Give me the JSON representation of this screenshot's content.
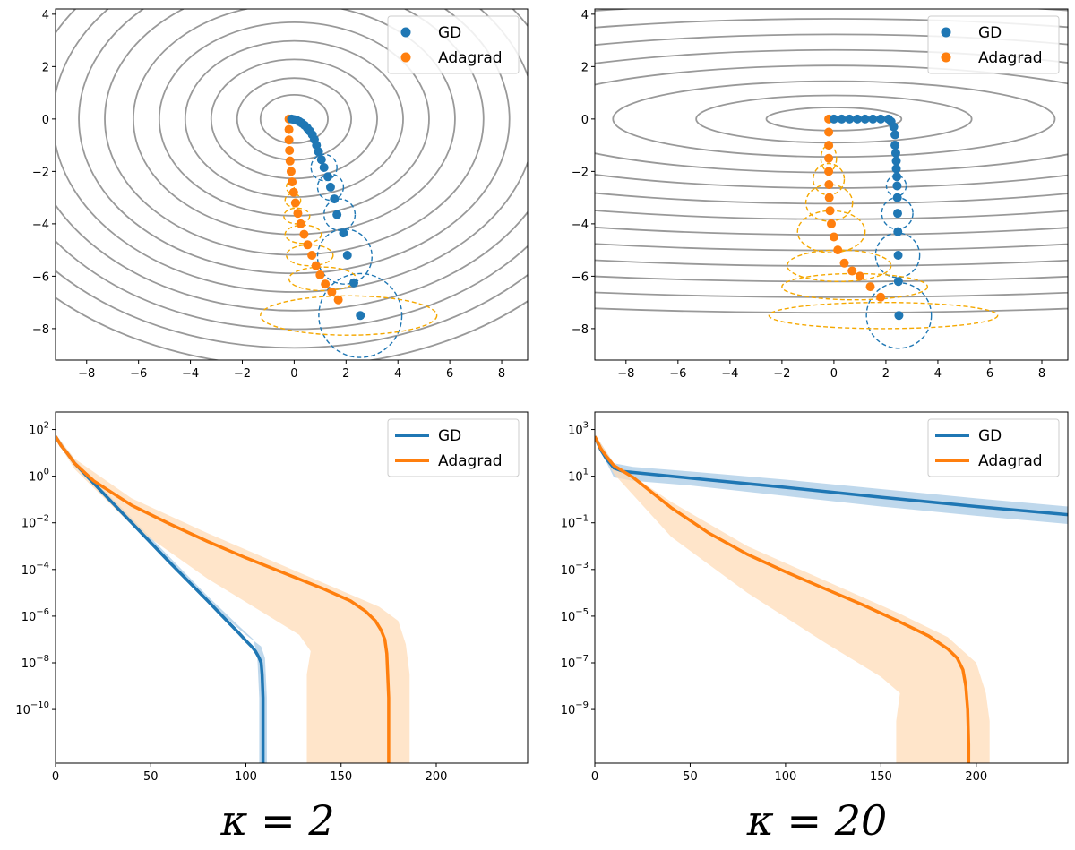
{
  "figure": {
    "captions": [
      "κ = 2",
      "κ = 20"
    ]
  },
  "colors": {
    "gd": "#1f77b4",
    "adagrad": "#ff7f0e",
    "adagrad_ellipse": "#f5a800",
    "contour": "#999999",
    "gd_band": "#aacbe5",
    "adagrad_band": "#ffdcb8"
  },
  "chart_data": [
    {
      "type": "scatter",
      "title": "",
      "xlabel": "",
      "ylabel": "",
      "xlim": [
        -9.2,
        9.0
      ],
      "ylim": [
        -9.2,
        4.2
      ],
      "xticks": [
        -8,
        -6,
        -4,
        -2,
        0,
        2,
        4,
        6,
        8
      ],
      "yticks": [
        -8,
        -6,
        -4,
        -2,
        0,
        2,
        4
      ],
      "kappa": 2,
      "legend": {
        "position": "top-right",
        "entries": [
          "GD",
          "Adagrad"
        ]
      },
      "contours": {
        "center": [
          0,
          0
        ],
        "radii_x": [
          1.3,
          2.2,
          3.2,
          4.2,
          5.2,
          6.2,
          7.3,
          8.3,
          9.3,
          10.3,
          11.3,
          12.3,
          13.3
        ],
        "aspect_y": 0.71
      },
      "series": [
        {
          "name": "GD",
          "points": [
            [
              -0.1,
              0
            ],
            [
              0,
              -0.02
            ],
            [
              0.1,
              -0.05
            ],
            [
              0.2,
              -0.1
            ],
            [
              0.3,
              -0.16
            ],
            [
              0.4,
              -0.24
            ],
            [
              0.5,
              -0.34
            ],
            [
              0.6,
              -0.46
            ],
            [
              0.7,
              -0.6
            ],
            [
              0.78,
              -0.78
            ],
            [
              0.86,
              -1.0
            ],
            [
              0.94,
              -1.25
            ],
            [
              1.05,
              -1.55
            ],
            [
              1.15,
              -1.85
            ],
            [
              1.3,
              -2.2
            ],
            [
              1.4,
              -2.6
            ],
            [
              1.55,
              -3.05
            ],
            [
              1.65,
              -3.65
            ],
            [
              1.9,
              -4.35
            ],
            [
              2.05,
              -5.2
            ],
            [
              2.3,
              -6.25
            ],
            [
              2.55,
              -7.5
            ]
          ],
          "ellipses": [
            [
              1.15,
              -1.85,
              0.5,
              0.5
            ],
            [
              1.4,
              -2.6,
              0.5,
              0.5
            ],
            [
              1.75,
              -3.65,
              0.6,
              0.6
            ],
            [
              1.95,
              -5.25,
              1.05,
              1.05
            ],
            [
              2.55,
              -7.5,
              1.6,
              1.6
            ]
          ]
        },
        {
          "name": "Adagrad",
          "points": [
            [
              -0.2,
              0
            ],
            [
              -0.2,
              -0.4
            ],
            [
              -0.2,
              -0.8
            ],
            [
              -0.18,
              -1.2
            ],
            [
              -0.16,
              -1.6
            ],
            [
              -0.12,
              -2.0
            ],
            [
              -0.08,
              -2.4
            ],
            [
              -0.02,
              -2.8
            ],
            [
              0.05,
              -3.2
            ],
            [
              0.14,
              -3.6
            ],
            [
              0.25,
              -4.0
            ],
            [
              0.38,
              -4.4
            ],
            [
              0.52,
              -4.8
            ],
            [
              0.68,
              -5.2
            ],
            [
              0.84,
              -5.6
            ],
            [
              1.0,
              -5.95
            ],
            [
              1.2,
              -6.3
            ],
            [
              1.45,
              -6.6
            ],
            [
              1.7,
              -6.9
            ]
          ],
          "ellipses": [
            [
              -0.15,
              -2.6,
              0.15,
              0.2
            ],
            [
              -0.05,
              -3.1,
              0.3,
              0.25
            ],
            [
              0.1,
              -3.7,
              0.5,
              0.3
            ],
            [
              0.35,
              -4.4,
              0.7,
              0.35
            ],
            [
              0.6,
              -5.2,
              0.9,
              0.4
            ],
            [
              1.1,
              -6.1,
              1.3,
              0.45
            ],
            [
              2.1,
              -7.5,
              3.4,
              0.75
            ]
          ]
        }
      ]
    },
    {
      "type": "scatter",
      "title": "",
      "xlabel": "",
      "ylabel": "",
      "xlim": [
        -9.2,
        9.0
      ],
      "ylim": [
        -9.2,
        4.2
      ],
      "xticks": [
        -8,
        -6,
        -4,
        -2,
        0,
        2,
        4,
        6,
        8
      ],
      "yticks": [
        -8,
        -6,
        -4,
        -2,
        0,
        2,
        4
      ],
      "kappa": 20,
      "legend": {
        "position": "top-right",
        "entries": [
          "GD",
          "Adagrad"
        ]
      },
      "contours": {
        "center": [
          0,
          0
        ],
        "radii_x": [
          2.6,
          5.3,
          8.5,
          12,
          15.5,
          19,
          22.5,
          26,
          29.5,
          33,
          36.5,
          40,
          43.5
        ],
        "aspect_y": 0.17
      },
      "series": [
        {
          "name": "GD",
          "points": [
            [
              0,
              0
            ],
            [
              0.3,
              0
            ],
            [
              0.6,
              0
            ],
            [
              0.9,
              0
            ],
            [
              1.2,
              0
            ],
            [
              1.5,
              0
            ],
            [
              1.8,
              0
            ],
            [
              2.1,
              0
            ],
            [
              2.2,
              -0.1
            ],
            [
              2.3,
              -0.3
            ],
            [
              2.35,
              -0.6
            ],
            [
              2.35,
              -1.0
            ],
            [
              2.38,
              -1.3
            ],
            [
              2.4,
              -1.6
            ],
            [
              2.4,
              -1.9
            ],
            [
              2.42,
              -2.2
            ],
            [
              2.43,
              -2.55
            ],
            [
              2.44,
              -3.0
            ],
            [
              2.45,
              -3.6
            ],
            [
              2.46,
              -4.3
            ],
            [
              2.47,
              -5.2
            ],
            [
              2.48,
              -6.2
            ],
            [
              2.5,
              -7.5
            ]
          ],
          "ellipses": [
            [
              2.4,
              -2.55,
              0.38,
              0.4
            ],
            [
              2.44,
              -3.6,
              0.6,
              0.6
            ],
            [
              2.45,
              -5.2,
              0.85,
              0.85
            ],
            [
              2.5,
              -7.5,
              1.25,
              1.25
            ]
          ]
        },
        {
          "name": "Adagrad",
          "points": [
            [
              -0.2,
              0
            ],
            [
              -0.2,
              -0.5
            ],
            [
              -0.2,
              -1.0
            ],
            [
              -0.2,
              -1.5
            ],
            [
              -0.2,
              -2.0
            ],
            [
              -0.19,
              -2.5
            ],
            [
              -0.18,
              -3.0
            ],
            [
              -0.15,
              -3.5
            ],
            [
              -0.1,
              -4.0
            ],
            [
              0,
              -4.5
            ],
            [
              0.15,
              -5.0
            ],
            [
              0.4,
              -5.5
            ],
            [
              0.7,
              -5.8
            ],
            [
              1.0,
              -6.0
            ],
            [
              1.4,
              -6.4
            ],
            [
              1.8,
              -6.8
            ]
          ],
          "ellipses": [
            [
              -0.2,
              -1.5,
              0.3,
              0.5
            ],
            [
              -0.2,
              -2.3,
              0.6,
              0.6
            ],
            [
              -0.18,
              -3.2,
              0.9,
              0.7
            ],
            [
              -0.1,
              -4.3,
              1.3,
              0.8
            ],
            [
              0.2,
              -5.6,
              2.0,
              0.6
            ],
            [
              0.8,
              -6.4,
              2.8,
              0.5
            ],
            [
              1.9,
              -7.5,
              4.4,
              0.5
            ]
          ]
        }
      ]
    },
    {
      "type": "line",
      "title": "",
      "xlabel": "",
      "ylabel": "",
      "yscale": "log",
      "xlim": [
        0,
        248
      ],
      "ylim_exp": [
        -12.3,
        2.75
      ],
      "xticks": [
        0,
        50,
        100,
        150,
        200
      ],
      "ytick_exps": [
        2,
        0,
        -2,
        -4,
        -6,
        -8,
        -10
      ],
      "legend": {
        "position": "top-right",
        "entries": [
          "GD",
          "Adagrad"
        ]
      },
      "series": [
        {
          "name": "GD",
          "x": [
            0,
            3,
            6,
            10,
            20,
            40,
            60,
            80,
            90,
            96,
            100,
            103,
            105,
            106,
            107,
            108,
            108.5,
            109,
            109,
            109
          ],
          "log10_y": [
            1.7,
            1.3,
            1.0,
            0.55,
            -0.3,
            -2.0,
            -3.7,
            -5.35,
            -6.2,
            -6.7,
            -7.05,
            -7.3,
            -7.5,
            -7.65,
            -7.8,
            -8.0,
            -8.5,
            -9.5,
            -11,
            -12.3
          ],
          "band_x": [
            0,
            10,
            40,
            80,
            96,
            104,
            106,
            107,
            107,
            111,
            111,
            110,
            108,
            100,
            82,
            42,
            12,
            0
          ],
          "band_log10_y": [
            1.8,
            0.7,
            -1.8,
            -5.15,
            -6.4,
            -7.0,
            -7.8,
            -9.5,
            -12.3,
            -12.3,
            -9.5,
            -7.8,
            -7.3,
            -6.8,
            -5.55,
            -2.2,
            0.45,
            1.6
          ]
        },
        {
          "name": "Adagrad",
          "x": [
            0,
            3,
            6,
            10,
            20,
            40,
            60,
            80,
            100,
            120,
            140,
            155,
            163,
            168,
            171,
            173,
            174,
            174.5,
            175,
            175,
            175
          ],
          "log10_y": [
            1.7,
            1.3,
            1.0,
            0.55,
            -0.2,
            -1.25,
            -2.05,
            -2.8,
            -3.5,
            -4.15,
            -4.8,
            -5.35,
            -5.8,
            -6.2,
            -6.6,
            -7.0,
            -7.6,
            -8.5,
            -9.5,
            -11,
            -12.3
          ],
          "band_x": [
            0,
            10,
            40,
            80,
            120,
            150,
            170,
            180,
            184,
            186,
            186,
            132,
            132,
            134,
            128,
            110,
            80,
            40,
            10,
            0
          ],
          "band_log10_y": [
            1.8,
            0.75,
            -0.95,
            -2.45,
            -3.85,
            -4.9,
            -5.6,
            -6.2,
            -7.2,
            -8.5,
            -12.3,
            -12.3,
            -8.5,
            -7.5,
            -6.8,
            -5.9,
            -4.4,
            -2.1,
            0.3,
            1.6
          ]
        }
      ]
    },
    {
      "type": "line",
      "title": "",
      "xlabel": "",
      "ylabel": "",
      "yscale": "log",
      "xlim": [
        0,
        248
      ],
      "ylim_exp": [
        -11.3,
        3.75
      ],
      "xticks": [
        0,
        50,
        100,
        150,
        200
      ],
      "ytick_exps": [
        3,
        1,
        -1,
        -3,
        -5,
        -7,
        -9
      ],
      "legend": {
        "position": "top-right",
        "entries": [
          "GD",
          "Adagrad"
        ]
      },
      "series": [
        {
          "name": "GD",
          "x": [
            0,
            3,
            6,
            10,
            15,
            25,
            50,
            100,
            150,
            200,
            248
          ],
          "log10_y": [
            2.7,
            2.15,
            1.75,
            1.35,
            1.2,
            1.12,
            0.92,
            0.52,
            0.1,
            -0.3,
            -0.65
          ],
          "band_x": [
            0,
            10,
            20,
            50,
            100,
            150,
            200,
            248,
            248,
            200,
            150,
            100,
            50,
            20,
            10,
            0
          ],
          "band_log10_y": [
            2.8,
            1.55,
            1.4,
            1.2,
            0.85,
            0.45,
            0.05,
            -0.3,
            -1.05,
            -0.7,
            -0.3,
            0.15,
            0.6,
            0.8,
            0.95,
            2.6
          ]
        },
        {
          "name": "Adagrad",
          "x": [
            0,
            3,
            6,
            10,
            20,
            40,
            60,
            80,
            100,
            120,
            140,
            160,
            175,
            185,
            190,
            193,
            194.5,
            195.5,
            196,
            196
          ],
          "log10_y": [
            2.7,
            2.2,
            1.85,
            1.45,
            0.95,
            -0.35,
            -1.45,
            -2.35,
            -3.1,
            -3.8,
            -4.5,
            -5.25,
            -5.85,
            -6.4,
            -6.8,
            -7.3,
            -8.0,
            -9.0,
            -10.5,
            -11.3
          ],
          "band_x": [
            0,
            10,
            40,
            80,
            120,
            160,
            185,
            200,
            205,
            207,
            207,
            158,
            158,
            160,
            150,
            120,
            80,
            40,
            10,
            0
          ],
          "band_log10_y": [
            2.8,
            1.55,
            -0.1,
            -2.0,
            -3.45,
            -4.9,
            -5.9,
            -7.0,
            -8.3,
            -9.5,
            -11.3,
            -11.3,
            -9.5,
            -8.3,
            -7.6,
            -6.1,
            -4.0,
            -1.6,
            1.1,
            2.6
          ]
        }
      ]
    }
  ]
}
